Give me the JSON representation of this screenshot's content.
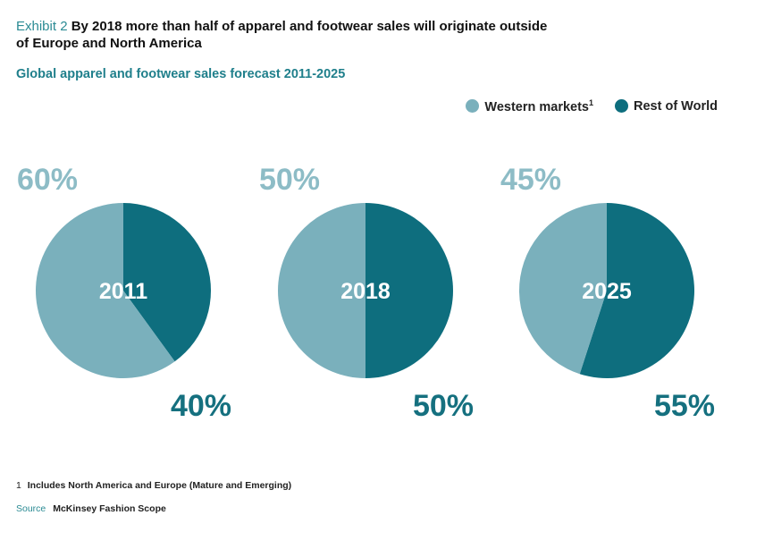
{
  "header": {
    "exhibit": "Exhibit 2",
    "title_line1": "By 2018 more than half of apparel and footwear sales will originate outside",
    "title_line2": "of Europe and North America",
    "subtitle": "Global apparel and footwear sales forecast 2011-2025"
  },
  "colors": {
    "western": "#7ab0bc",
    "rest": "#0e6e7e",
    "western_text": "#8dbcc6",
    "rest_text": "#15707f"
  },
  "chart_data": {
    "type": "pie",
    "title": "Global apparel and footwear sales forecast 2011-2025",
    "legend": [
      {
        "name": "Western markets",
        "footnote": "1"
      },
      {
        "name": "Rest of World"
      }
    ],
    "legend_position": "top-right",
    "pies": [
      {
        "year": "2011",
        "western": 60,
        "rest": 40,
        "western_label": "60%",
        "rest_label": "40%"
      },
      {
        "year": "2018",
        "western": 50,
        "rest": 50,
        "western_label": "50%",
        "rest_label": "50%"
      },
      {
        "year": "2025",
        "western": 45,
        "rest": 55,
        "western_label": "45%",
        "rest_label": "55%"
      }
    ]
  },
  "footer": {
    "footnote_num": "1",
    "footnote_text": "Includes North America and Europe (Mature and Emerging)",
    "source_label": "Source",
    "source_text": "McKinsey Fashion Scope"
  }
}
